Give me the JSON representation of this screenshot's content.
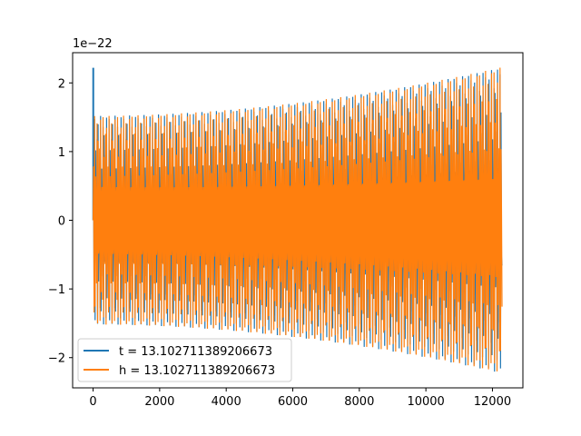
{
  "chart_data": {
    "type": "line",
    "title": "",
    "xlabel": "",
    "ylabel": "",
    "y_offset_label": "1e−22",
    "xlim": [
      -615,
      12915
    ],
    "ylim": [
      -2.44,
      2.44
    ],
    "x_ticks": [
      0,
      2000,
      4000,
      6000,
      8000,
      10000,
      12000
    ],
    "x_tick_labels": [
      "0",
      "2000",
      "4000",
      "6000",
      "8000",
      "10000",
      "12000"
    ],
    "y_ticks": [
      -2,
      -1,
      0,
      1,
      2
    ],
    "y_tick_labels": [
      "−2",
      "−1",
      "0",
      "1",
      "2"
    ],
    "grid": false,
    "legend_position": "lower-left",
    "series": [
      {
        "name": "t = 13.102711389206673",
        "color": "#1f77b4",
        "x_range": [
          0,
          12300
        ],
        "spike": {
          "x": 5,
          "y": 2.22
        },
        "envelope_start": 1.52,
        "envelope_end": 2.23
      },
      {
        "name": "h = 13.102711389206673",
        "color": "#ff7f0e",
        "x_range": [
          0,
          12300
        ],
        "envelope_start": 1.52,
        "envelope_end": 2.23
      }
    ]
  }
}
